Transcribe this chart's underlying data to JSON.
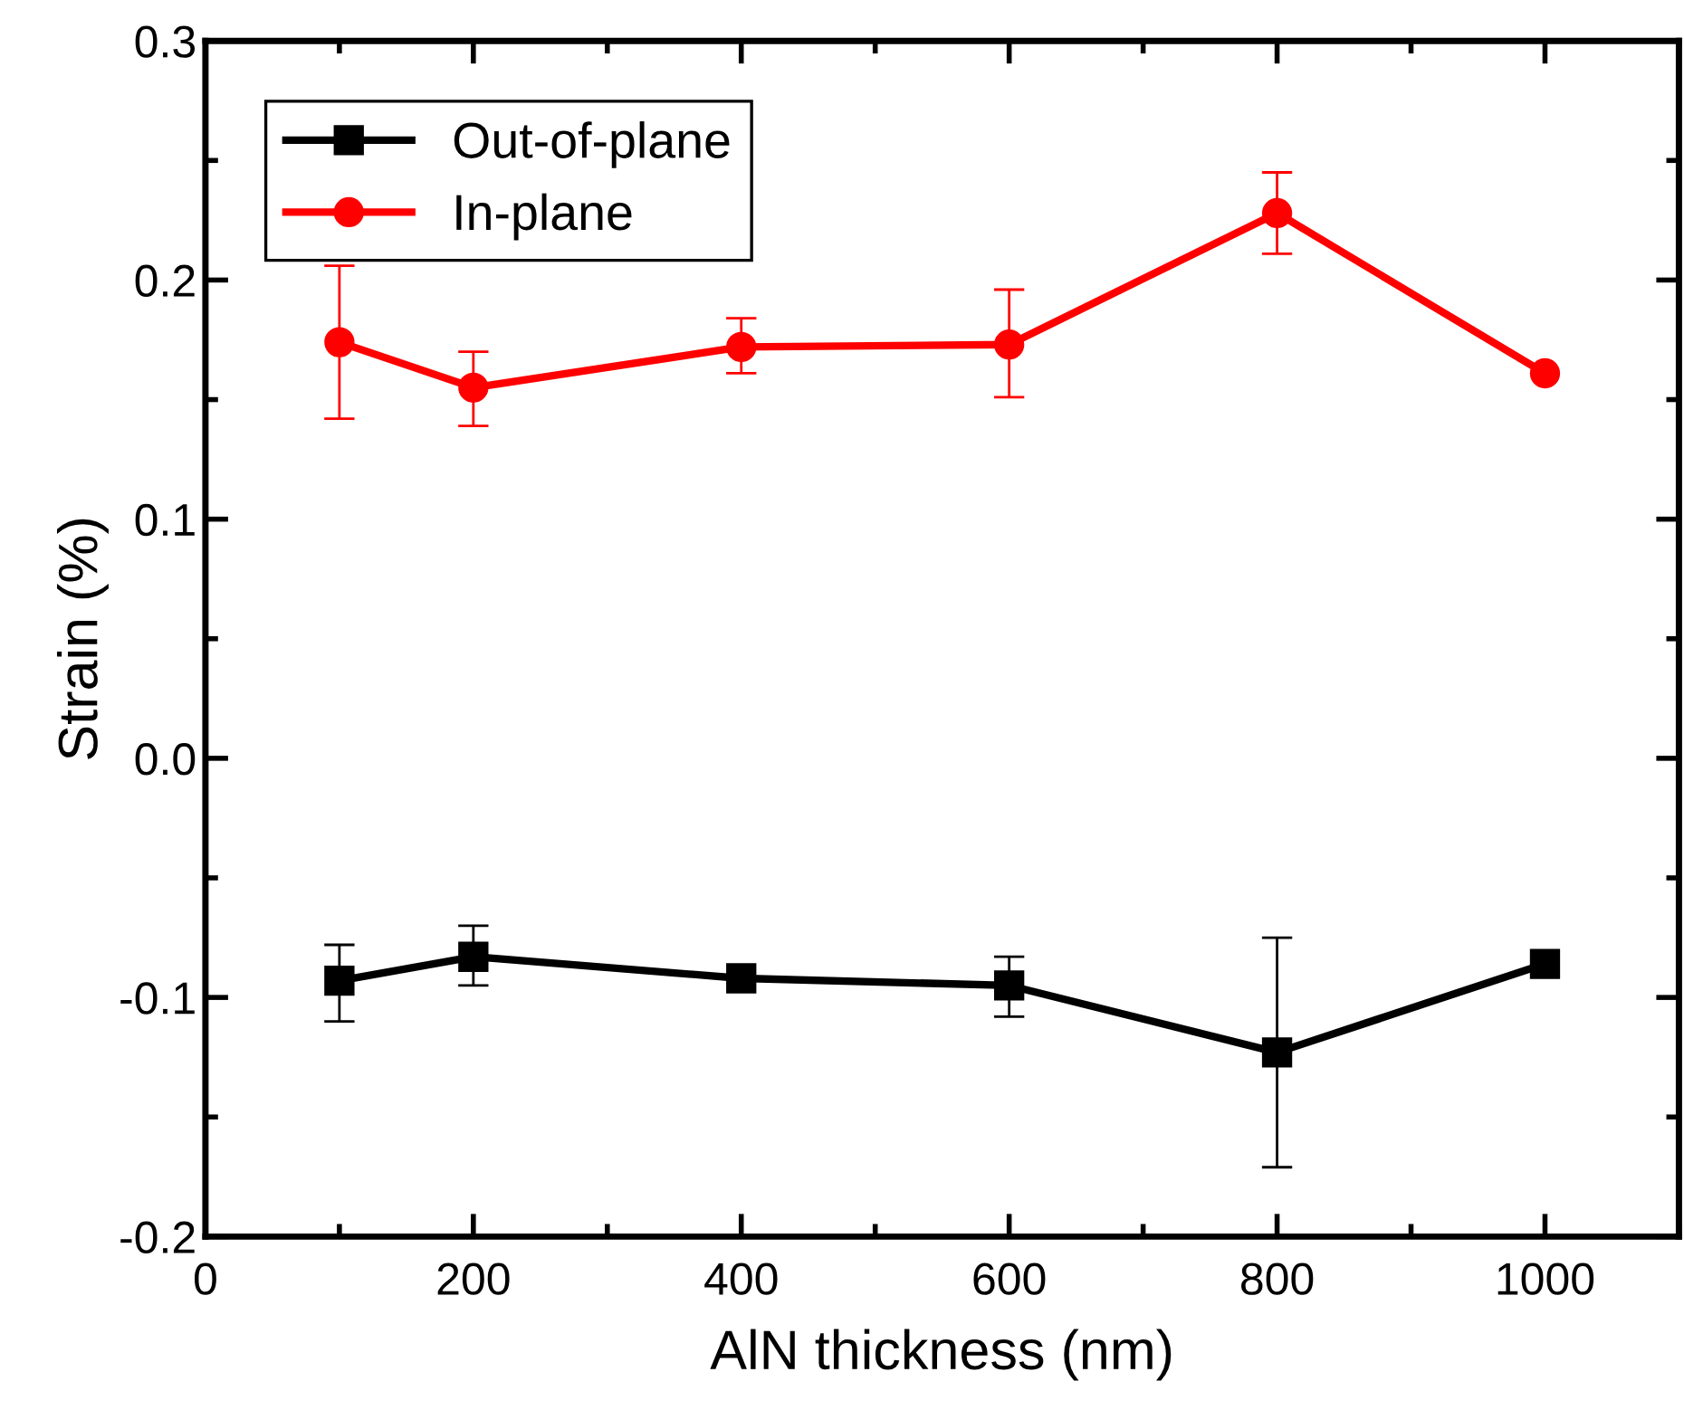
{
  "chart_data": {
    "type": "line",
    "xlabel": "AlN thickness (nm)",
    "ylabel": "Strain (%)",
    "x": [
      100,
      200,
      400,
      600,
      800,
      1000
    ],
    "series": [
      {
        "name": "Out-of-plane",
        "color": "#000000",
        "marker": "square",
        "values": [
          -0.093,
          -0.083,
          -0.092,
          -0.095,
          -0.123,
          -0.086
        ],
        "errors": [
          [
            -0.11,
            -0.078
          ],
          [
            -0.095,
            -0.07
          ],
          null,
          [
            -0.108,
            -0.083
          ],
          [
            -0.171,
            -0.075
          ],
          null
        ]
      },
      {
        "name": "In-plane",
        "color": "#ff0000",
        "marker": "circle",
        "values": [
          0.174,
          0.155,
          0.172,
          0.173,
          0.228,
          0.161
        ],
        "errors": [
          [
            0.142,
            0.206
          ],
          [
            0.139,
            0.17
          ],
          [
            0.161,
            0.184
          ],
          [
            0.151,
            0.196
          ],
          [
            0.211,
            0.245
          ],
          null
        ]
      }
    ],
    "xlim": [
      0,
      1100
    ],
    "xticks": [
      0,
      200,
      400,
      600,
      800,
      1000
    ],
    "ylim": [
      -0.2,
      0.3
    ],
    "yticks": [
      {
        "value": -0.2,
        "label": "-0.2"
      },
      {
        "value": -0.1,
        "label": "-0.1"
      },
      {
        "value": 0.0,
        "label": "0.0"
      },
      {
        "value": 0.1,
        "label": "0.1"
      },
      {
        "value": 0.2,
        "label": "0.2"
      },
      {
        "value": 0.3,
        "label": "0.3"
      }
    ],
    "legend": "top left",
    "grid": false,
    "line_style": "solid"
  }
}
